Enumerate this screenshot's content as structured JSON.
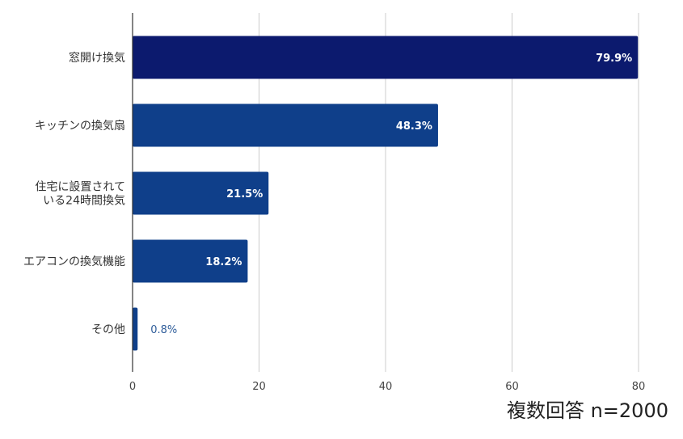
{
  "chart_data": {
    "type": "bar",
    "orientation": "horizontal",
    "categories": [
      [
        "窓開け換気"
      ],
      [
        "キッチンの換気扇"
      ],
      [
        "住宅に設置されて",
        "いる24時間換気"
      ],
      [
        "エアコンの換気機能"
      ],
      [
        "その他"
      ]
    ],
    "values": [
      79.9,
      48.3,
      21.5,
      18.2,
      0.8
    ],
    "value_labels": [
      "79.9%",
      "48.3%",
      "21.5%",
      "18.2%",
      "0.8%"
    ],
    "bar_colors": [
      "#0c1a6e",
      "#0f3f8a",
      "#0f3f8a",
      "#0f3f8a",
      "#0f3f8a"
    ],
    "xlim": [
      0,
      80
    ],
    "xticks": [
      0,
      20,
      40,
      60,
      80
    ],
    "grid": true,
    "title": "",
    "xlabel": "",
    "ylabel": ""
  },
  "note": "複数回答 n=2000"
}
